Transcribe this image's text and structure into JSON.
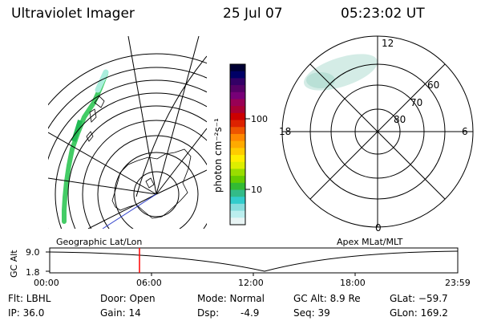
{
  "header": {
    "instrument": "Ultraviolet Imager",
    "date": "25 Jul 07",
    "time": "05:23:02 UT"
  },
  "colorbar": {
    "label": "photon cm⁻²s⁻¹",
    "ticks": [
      "100",
      "10"
    ],
    "colors": [
      "#000033",
      "#000066",
      "#330066",
      "#550066",
      "#770077",
      "#990055",
      "#aa0033",
      "#cc0000",
      "#dd2200",
      "#ee5500",
      "#ff8800",
      "#ffaa00",
      "#ffcc00",
      "#ffee00",
      "#ddee00",
      "#99dd00",
      "#66cc00",
      "#33bb33",
      "#33bb88",
      "#33cccc",
      "#88dddd",
      "#bbeeee",
      "#e8f4f4"
    ]
  },
  "geo_map": {
    "projection_label": "Geographic Lat/Lon"
  },
  "polar_plot": {
    "coord_label": "Apex MLat/MLT",
    "mlt_labels": {
      "top": "12",
      "left": "18",
      "right": "6",
      "bottom": "0"
    },
    "mlat_labels": [
      "60",
      "70",
      "80"
    ]
  },
  "timeline": {
    "axis_label": "GC Alt",
    "y_ticks": [
      "9.0",
      "1.8"
    ],
    "x_ticks": [
      "00:00",
      "06:00",
      "12:00",
      "18:00",
      "23:59"
    ],
    "current_time_marker_color": "#ff0000"
  },
  "status": {
    "filter": "Flt: LBHL",
    "ip": "IP: 36.0",
    "door": "Door: Open",
    "gain": "Gain: 14",
    "mode": "Mode: Normal",
    "dsp_label": "Dsp:",
    "dsp_value": "-4.9",
    "gc_alt": "GC Alt: 8.9 Re",
    "seq": "Seq: 39",
    "glat": "GLat: −59.7",
    "glon": "GLon: 169.2"
  }
}
